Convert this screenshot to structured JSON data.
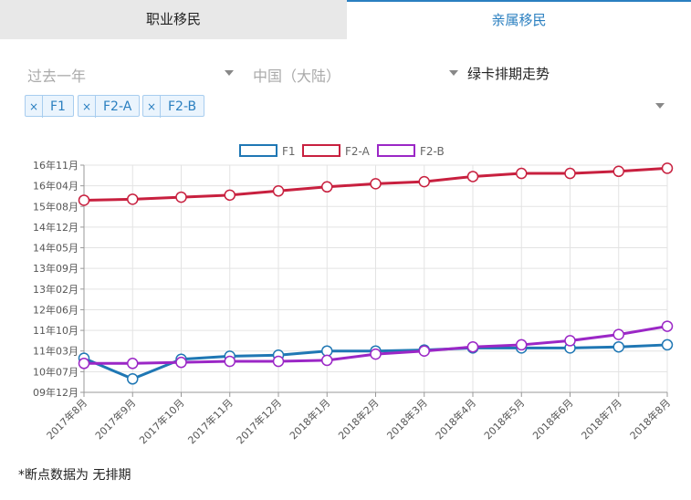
{
  "tabs": [
    {
      "label": "职业移民",
      "active": false
    },
    {
      "label": "亲属移民",
      "active": true
    }
  ],
  "filters": {
    "period": "过去一年",
    "country": "中国（大陆）",
    "view": "绿卡排期走势"
  },
  "chips": [
    {
      "remove": "×",
      "label": "F1"
    },
    {
      "remove": "×",
      "label": "F2-A"
    },
    {
      "remove": "×",
      "label": "F2-B"
    }
  ],
  "footnote": "*断点数据为 无排期",
  "colors": {
    "F1": "#1f77b4",
    "F2-A": "#c8203f",
    "F2-B": "#9b27c6",
    "accent": "#2a7fc0"
  },
  "chart_data": {
    "type": "line",
    "categories": [
      "2017年8月",
      "2017年9月",
      "2017年10月",
      "2017年11月",
      "2017年12月",
      "2018年1月",
      "2018年2月",
      "2018年3月",
      "2018年4月",
      "2018年5月",
      "2018年6月",
      "2018年7月",
      "2018年8月"
    ],
    "y_ticks": [
      "09年12月",
      "10年07月",
      "11年03月",
      "11年10月",
      "12年06月",
      "13年02月",
      "13年09月",
      "14年05月",
      "14年12月",
      "15年08月",
      "16年04月",
      "16年11月"
    ],
    "series": [
      {
        "name": "F1",
        "values": [
          1.65,
          0.65,
          1.6,
          1.75,
          1.8,
          2.0,
          2.0,
          2.05,
          2.15,
          2.15,
          2.15,
          2.2,
          2.3
        ]
      },
      {
        "name": "F2-A",
        "values": [
          9.3,
          9.35,
          9.45,
          9.55,
          9.75,
          9.95,
          10.1,
          10.2,
          10.45,
          10.6,
          10.6,
          10.7,
          10.85
        ]
      },
      {
        "name": "F2-B",
        "values": [
          1.4,
          1.4,
          1.45,
          1.5,
          1.5,
          1.55,
          1.85,
          2.0,
          2.2,
          2.3,
          2.5,
          2.8,
          3.2
        ]
      }
    ],
    "ylim": [
      0,
      11
    ],
    "grid": true,
    "legend": "top-center"
  }
}
